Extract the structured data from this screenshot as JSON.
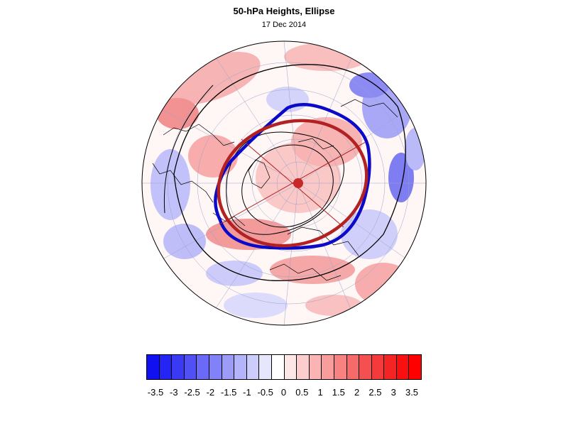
{
  "title": "50-hPa Heights, Ellipse",
  "subtitle": "17 Dec 2014",
  "colors": {
    "observed_contour": "#0a0ac8",
    "fitted_ellipse": "#b22222",
    "ellipse_center": "#c82828"
  },
  "colorbar": {
    "colors": [
      "#1010f0",
      "#2424f4",
      "#3a3af4",
      "#5050f4",
      "#6a6af6",
      "#8282f8",
      "#9c9cf8",
      "#b4b4fa",
      "#cdcdfb",
      "#e6e6fd",
      "#ffffff",
      "#fde6e6",
      "#fbcdcd",
      "#fab4b4",
      "#f89c9c",
      "#f88282",
      "#f66a6a",
      "#f45050",
      "#f43a3a",
      "#f42424",
      "#f81010",
      "#ff0000"
    ],
    "labels": [
      "-3.5",
      "-3",
      "-2.5",
      "-2",
      "-1.5",
      "-1",
      "-0.5",
      "0",
      "0.5",
      "1",
      "1.5",
      "2",
      "2.5",
      "3",
      "3.5"
    ]
  }
}
